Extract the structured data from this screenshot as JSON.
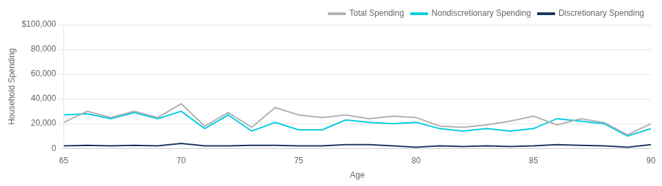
{
  "chart_data": {
    "type": "line",
    "x": [
      65,
      66,
      67,
      68,
      69,
      70,
      71,
      72,
      73,
      74,
      75,
      76,
      77,
      78,
      79,
      80,
      81,
      82,
      83,
      84,
      85,
      86,
      87,
      88,
      89,
      90
    ],
    "series": [
      {
        "name": "Total Spending",
        "color": "#b0b0b0",
        "values": [
          21000,
          30000,
          25000,
          30000,
          25000,
          36000,
          18000,
          29000,
          17000,
          33000,
          27000,
          25000,
          27000,
          24000,
          26000,
          25000,
          18000,
          17000,
          19000,
          22000,
          26000,
          19000,
          24000,
          21000,
          11000,
          20000
        ]
      },
      {
        "name": "Nondiscretionary Spending",
        "color": "#00cce0",
        "values": [
          27000,
          28000,
          24000,
          29000,
          24000,
          30000,
          16000,
          27000,
          14000,
          21000,
          15000,
          15000,
          23000,
          21000,
          20000,
          21000,
          16000,
          14000,
          16000,
          14000,
          16000,
          24000,
          22000,
          20000,
          10000,
          16000
        ]
      },
      {
        "name": "Discretionary Spending",
        "color": "#1a3560",
        "values": [
          2000,
          2500,
          2000,
          2500,
          2000,
          4000,
          2000,
          2000,
          2500,
          2500,
          2000,
          2000,
          3000,
          3000,
          2000,
          1000,
          2000,
          1500,
          2000,
          1500,
          2000,
          3000,
          2500,
          2000,
          1000,
          3000
        ]
      }
    ],
    "x_label": "Age",
    "y_label": "Household Spending",
    "xlim": [
      65,
      90
    ],
    "xticks": [
      65,
      70,
      75,
      80,
      85,
      90
    ],
    "ylim": [
      0,
      100000
    ],
    "yticks": [
      0,
      {
        "value": 20000,
        "label": "20,000"
      },
      {
        "value": 40000,
        "label": "40,000"
      },
      {
        "value": 60000,
        "label": "60,000"
      },
      {
        "value": 80000,
        "label": "80,000"
      },
      {
        "value": 100000,
        "label": "$100,000"
      }
    ],
    "grid": true,
    "legend": "upper right"
  }
}
